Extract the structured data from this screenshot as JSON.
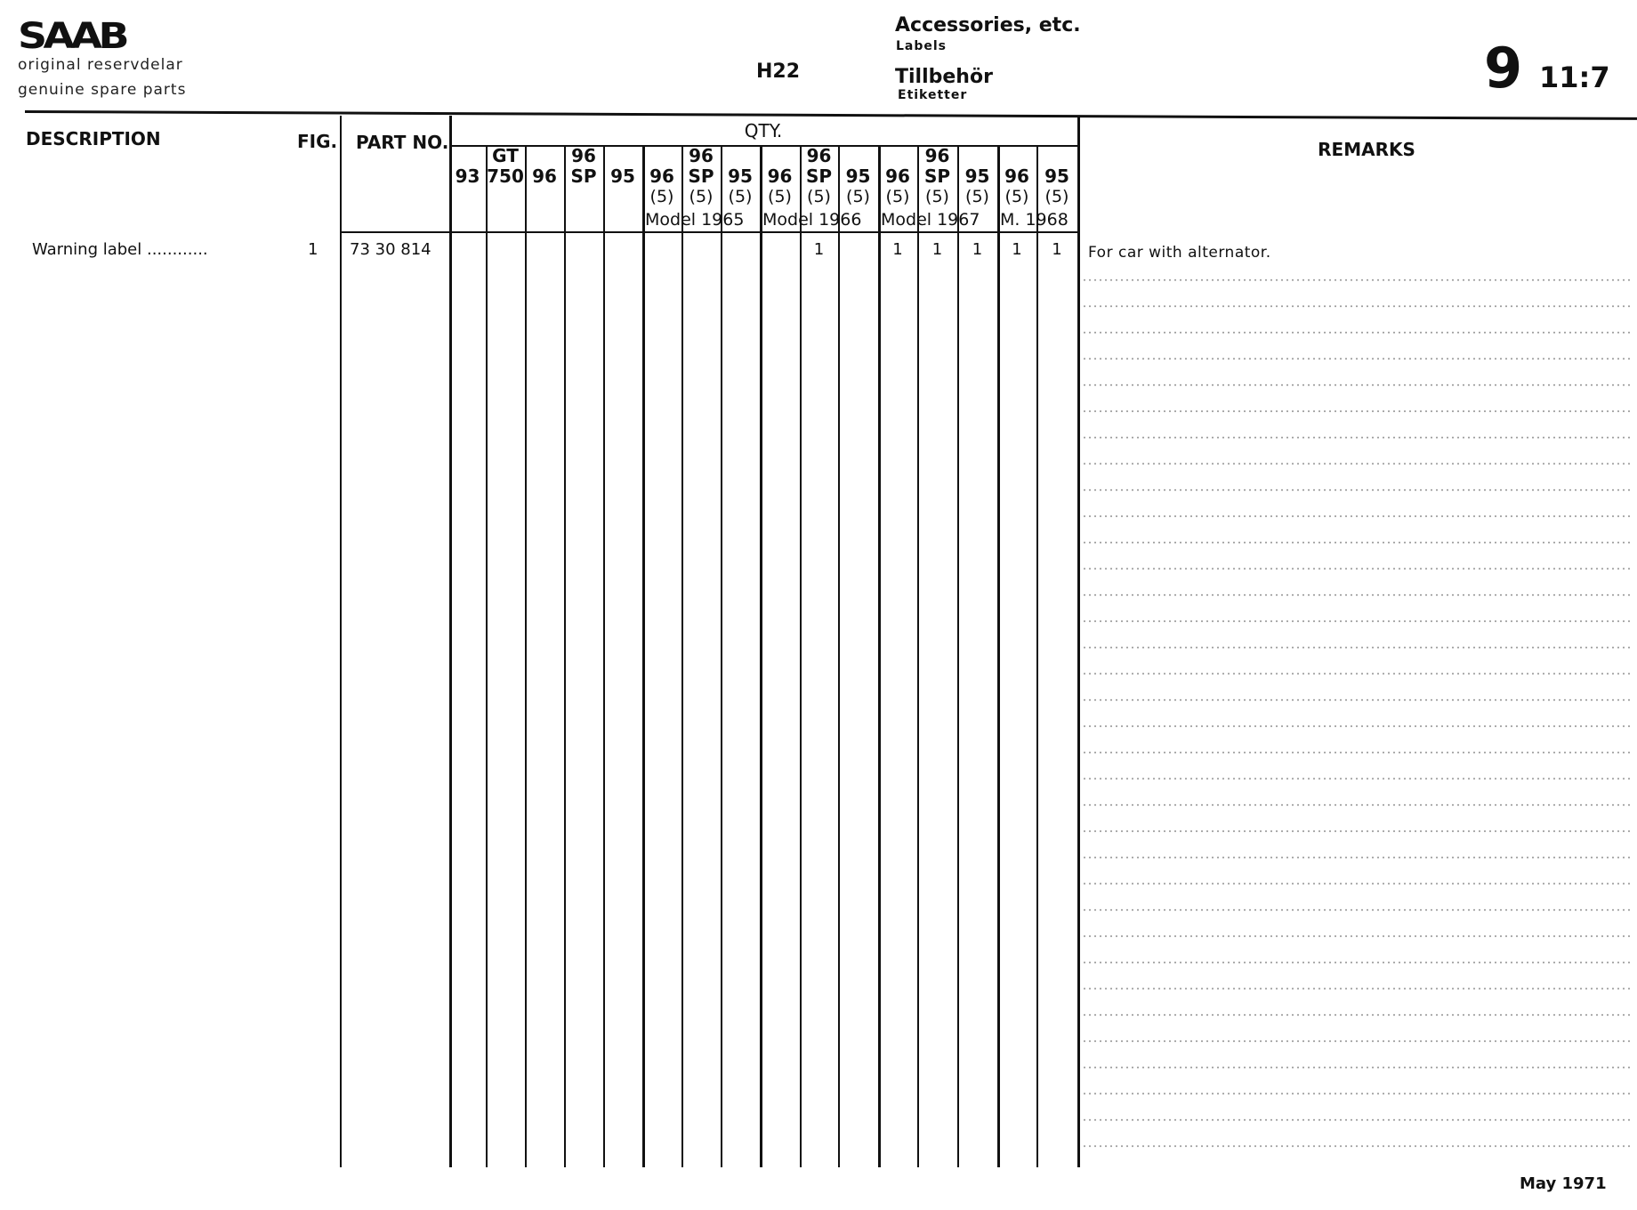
{
  "header": {
    "brand": "SAAB",
    "subtitle_sv": "original reservdelar",
    "subtitle_en": "genuine spare parts",
    "group_code": "H22",
    "title_en": "Accessories, etc.",
    "subtitle_labels_en": "Labels",
    "title_sv": "Tillbehör",
    "subtitle_labels_sv": "Etiketter",
    "section": "9",
    "page": "11:7"
  },
  "columns": {
    "description": "DESCRIPTION",
    "fig": "FIG.",
    "part_no": "PART NO.",
    "qty": "QTY.",
    "remarks": "REMARKS"
  },
  "qty_columns": [
    {
      "top": "",
      "model": "93",
      "variant": ""
    },
    {
      "top": "GT",
      "model": "750",
      "variant": ""
    },
    {
      "top": "",
      "model": "96",
      "variant": ""
    },
    {
      "top": "96",
      "model": "SP",
      "variant": ""
    },
    {
      "top": "",
      "model": "95",
      "variant": ""
    },
    {
      "top": "",
      "model": "96",
      "variant": "(5)"
    },
    {
      "top": "96",
      "model": "SP",
      "variant": "(5)"
    },
    {
      "top": "",
      "model": "95",
      "variant": "(5)"
    },
    {
      "top": "",
      "model": "96",
      "variant": "(5)"
    },
    {
      "top": "96",
      "model": "SP",
      "variant": "(5)"
    },
    {
      "top": "",
      "model": "95",
      "variant": "(5)"
    },
    {
      "top": "",
      "model": "96",
      "variant": "(5)"
    },
    {
      "top": "96",
      "model": "SP",
      "variant": "(5)"
    },
    {
      "top": "",
      "model": "95",
      "variant": "(5)"
    },
    {
      "top": "",
      "model": "96",
      "variant": "(5)"
    },
    {
      "top": "",
      "model": "95",
      "variant": "(5)"
    }
  ],
  "model_years": [
    "Model 1965",
    "Model 1966",
    "Model 1967",
    "M. 1968"
  ],
  "rows": [
    {
      "description": "Warning label ............",
      "fig": "1",
      "part_no": "73 30 814",
      "qty": [
        "",
        "",
        "",
        "",
        "",
        "",
        "",
        "",
        "",
        "1",
        "",
        "1",
        "1",
        "1",
        "1",
        "1"
      ],
      "remarks": "For car with alternator."
    }
  ],
  "footer": {
    "date": "May 1971"
  }
}
